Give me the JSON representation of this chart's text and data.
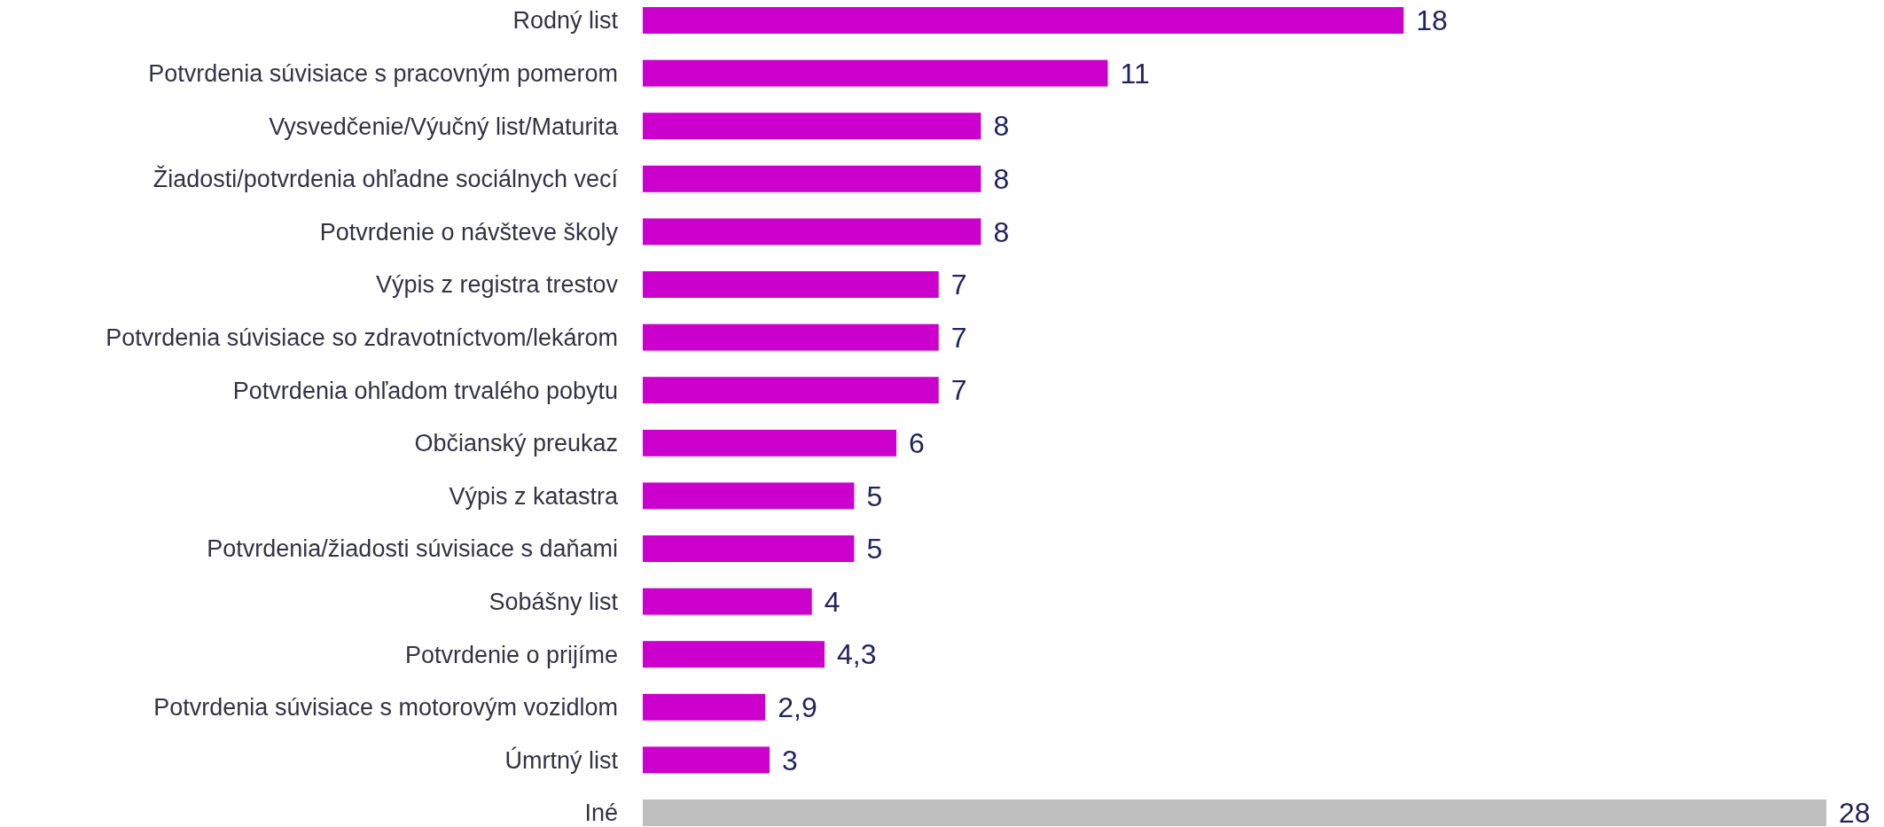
{
  "chart_data": {
    "type": "bar",
    "orientation": "horizontal",
    "categories": [
      "Rodný list",
      "Potvrdenia súvisiace s pracovným pomerom",
      "Vysvedčenie/Výučný list/Maturita",
      "Žiadosti/potvrdenia ohľadne sociálnych vecí",
      "Potvrdenie o návšteve školy",
      "Výpis z registra trestov",
      "Potvrdenia súvisiace so zdravotníctvom/lekárom",
      "Potvrdenia ohľadom trvalého pobytu",
      "Občianský preukaz",
      "Výpis z katastra",
      "Potvrdenia/žiadosti súvisiace s daňami",
      "Sobášny list",
      "Potvrdenie o prijíme",
      "Potvrdenia súvisiace s motorovým vozidlom",
      "Úmrtný list",
      "Iné"
    ],
    "values": [
      18,
      11,
      8,
      8,
      8,
      7,
      7,
      7,
      6,
      5,
      5,
      4,
      4.3,
      2.9,
      3,
      28
    ],
    "value_labels": [
      "18",
      "11",
      "8",
      "8",
      "8",
      "7",
      "7",
      "7",
      "6",
      "5",
      "5",
      "4",
      "4,3",
      "2,9",
      "3",
      "28"
    ],
    "colors": [
      "#cc00cc",
      "#cc00cc",
      "#cc00cc",
      "#cc00cc",
      "#cc00cc",
      "#cc00cc",
      "#cc00cc",
      "#cc00cc",
      "#cc00cc",
      "#cc00cc",
      "#cc00cc",
      "#cc00cc",
      "#cc00cc",
      "#cc00cc",
      "#cc00cc",
      "#bfbfbf"
    ]
  }
}
